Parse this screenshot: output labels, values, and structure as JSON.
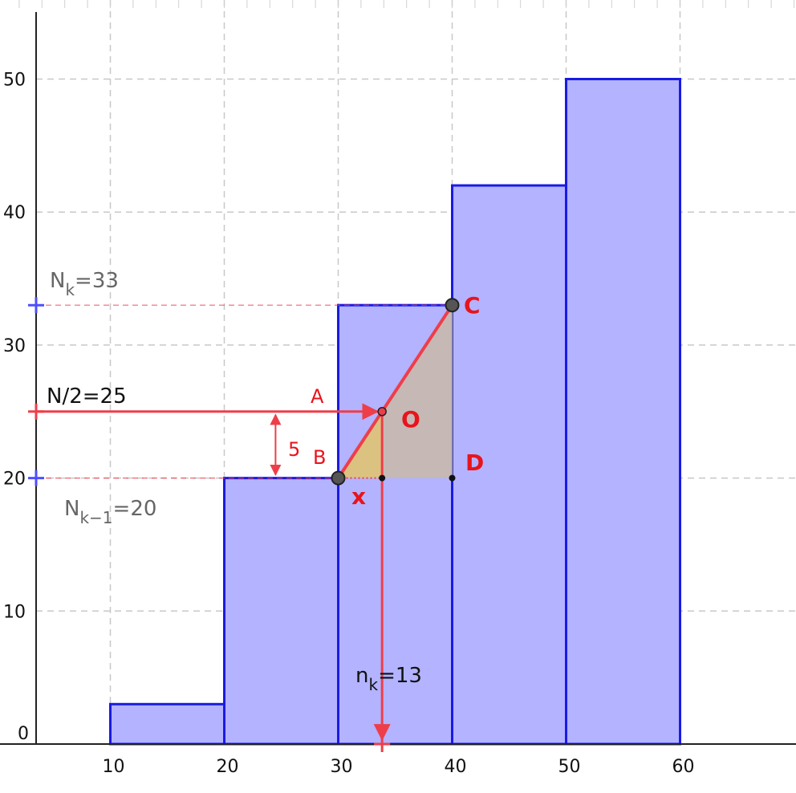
{
  "chart_data": {
    "type": "bar",
    "bins": [
      {
        "from": 10,
        "to": 20,
        "value": 3
      },
      {
        "from": 20,
        "to": 30,
        "value": 20
      },
      {
        "from": 30,
        "to": 40,
        "value": 33
      },
      {
        "from": 40,
        "to": 50,
        "value": 42
      },
      {
        "from": 50,
        "to": 60,
        "value": 50
      }
    ],
    "xlim": [
      0,
      70
    ],
    "ylim": [
      0,
      55
    ],
    "x_ticks": [
      "10",
      "20",
      "30",
      "40",
      "50",
      "60"
    ],
    "y_ticks": [
      "0",
      "10",
      "20",
      "30",
      "40",
      "50"
    ],
    "grid": true,
    "colors": {
      "bar_fill": "#b3b3ff",
      "bar_stroke": "#1a1ae6",
      "construction": "#ee3e4a",
      "small_triangle": "#e2c46a",
      "large_triangle": "#c7b8b0"
    },
    "annotations": {
      "nk_label_base": "N",
      "nk_label_sub": "k",
      "nk_label_rest": "=33",
      "nk1_label_base": "N",
      "nk1_label_sub": "k−1",
      "nk1_label_rest": "=20",
      "half_label": "N/2=25",
      "freq_label_base": "n",
      "freq_label_sub": "k",
      "freq_label_rest": "=13",
      "gap_label": "5",
      "x_label": "x",
      "point_A": "A",
      "point_B": "B",
      "point_C": "C",
      "point_D": "D",
      "point_O": "O"
    },
    "points": {
      "B": [
        30,
        20
      ],
      "C": [
        40,
        33
      ],
      "D": [
        40,
        20
      ],
      "O": [
        33.85,
        25
      ]
    },
    "levels": {
      "Nk": 33,
      "Nk_1": 20,
      "half": 25
    }
  }
}
